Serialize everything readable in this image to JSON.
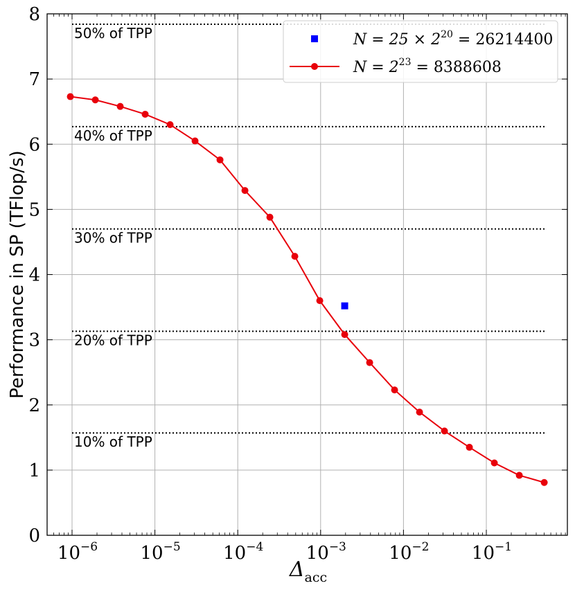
{
  "chart_data": {
    "type": "line",
    "title": "",
    "xlabel": "Δ",
    "xlabel_sub": "acc",
    "ylabel": "Performance in SP (TFlop/s)",
    "xscale": "log",
    "xlim_exp": [
      -6.25,
      0.0
    ],
    "ylim": [
      0,
      8
    ],
    "grid": true,
    "x_ticks": [
      {
        "base": "10",
        "exp": "−6",
        "value": 1e-06
      },
      {
        "base": "10",
        "exp": "−5",
        "value": 1e-05
      },
      {
        "base": "10",
        "exp": "−4",
        "value": 0.0001
      },
      {
        "base": "10",
        "exp": "−3",
        "value": 0.001
      },
      {
        "base": "10",
        "exp": "−2",
        "value": 0.01
      },
      {
        "base": "10",
        "exp": "−1",
        "value": 0.1
      }
    ],
    "y_ticks": [
      "0",
      "1",
      "2",
      "3",
      "4",
      "5",
      "6",
      "7",
      "8"
    ],
    "series": [
      {
        "name": "N = 2^23 = 8388608",
        "color": "#e8000b",
        "marker": "circle",
        "x": [
          9.5367e-07,
          1.9073e-06,
          3.8147e-06,
          7.6294e-06,
          1.5259e-05,
          3.0518e-05,
          6.1035e-05,
          0.00012207,
          0.00024414,
          0.00048828,
          0.00097656,
          0.0019531,
          0.0039063,
          0.0078125,
          0.015625,
          0.03125,
          0.0625,
          0.125,
          0.25,
          0.5
        ],
        "values": [
          6.73,
          6.68,
          6.58,
          6.46,
          6.3,
          6.05,
          5.76,
          5.29,
          4.88,
          4.28,
          3.6,
          3.08,
          2.65,
          2.23,
          1.89,
          1.6,
          1.35,
          1.11,
          0.92,
          0.81
        ]
      },
      {
        "name": "N = 25 × 2^20 = 26214400",
        "color": "#0000ff",
        "marker": "square",
        "x": [
          0.0019531
        ],
        "values": [
          3.52
        ]
      }
    ],
    "reference_lines": [
      {
        "label": "10% of TPP",
        "value": 1.57
      },
      {
        "label": "20% of TPP",
        "value": 3.13
      },
      {
        "label": "30% of TPP",
        "value": 4.7
      },
      {
        "label": "40% of TPP",
        "value": 6.27
      },
      {
        "label": "50% of TPP",
        "value": 7.84
      }
    ],
    "legend": [
      {
        "marker": "square",
        "color": "#0000ff",
        "lhs": "N = 25 × 2",
        "sup": "20",
        "rhs": " = 26214400"
      },
      {
        "marker": "circle",
        "color": "#e8000b",
        "lhs": "N = 2",
        "sup": "23",
        "rhs": " = 8388608"
      }
    ],
    "legend_position": "top-right"
  }
}
